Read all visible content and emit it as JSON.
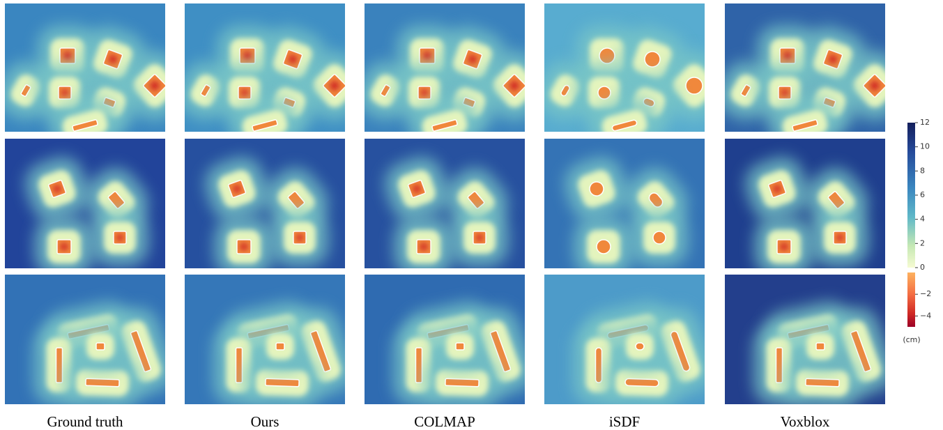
{
  "columns": [
    "Ground truth",
    "Ours",
    "COLMAP",
    "iSDF",
    "Voxblox"
  ],
  "colorbar": {
    "positive": {
      "lim": [
        0,
        12
      ],
      "ticks": [
        0,
        2,
        4,
        6,
        8,
        10,
        12
      ]
    },
    "negative": {
      "lim": [
        -5,
        0
      ],
      "ticks": [
        {
          "value": -2,
          "label": "−2"
        },
        {
          "value": -4,
          "label": "−4"
        }
      ]
    },
    "unit": "(cm)"
  }
}
